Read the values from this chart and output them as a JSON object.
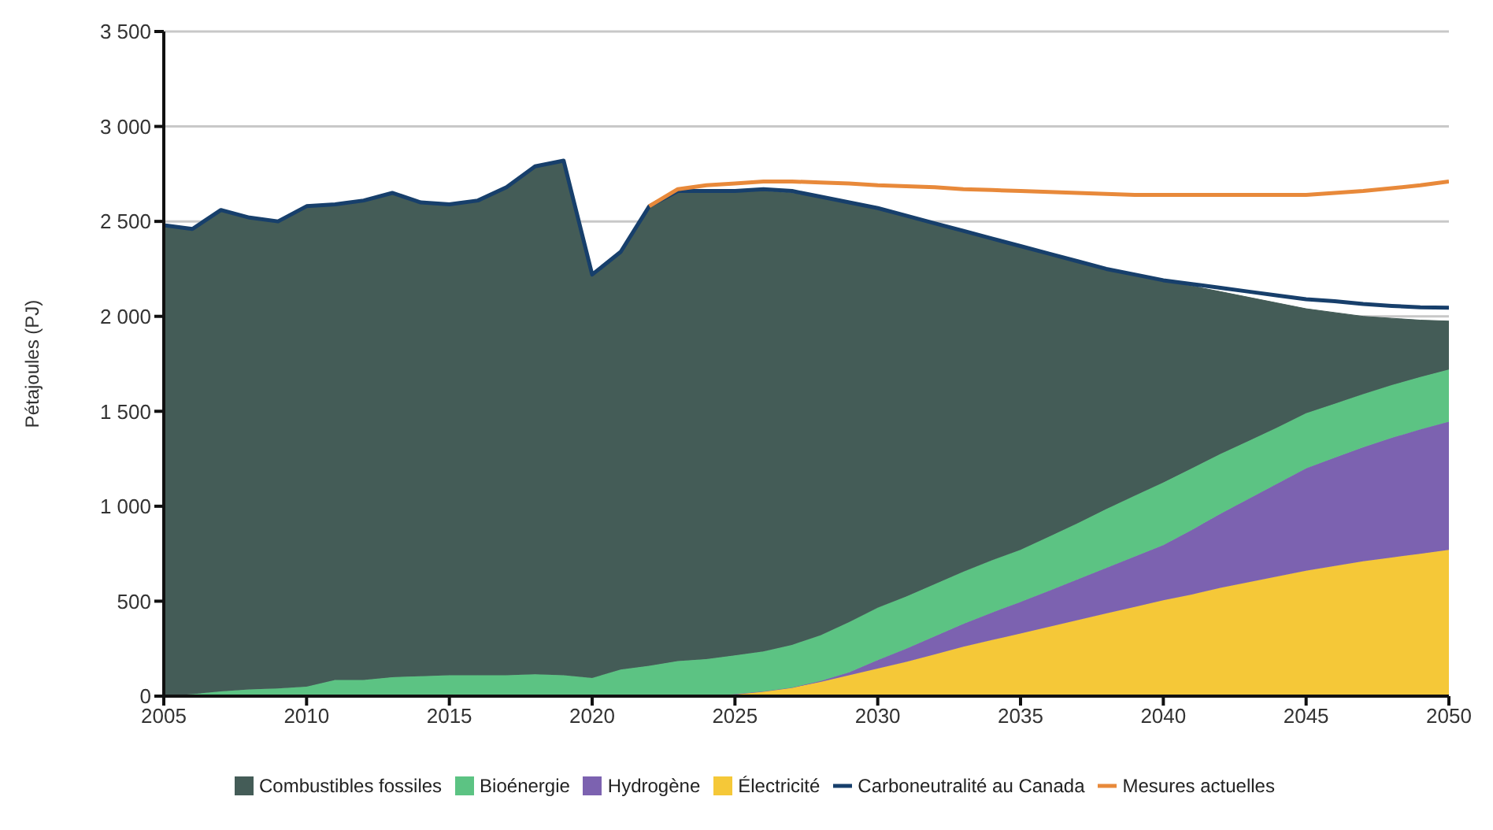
{
  "chart_data": {
    "type": "area",
    "stacked": true,
    "ylabel": "Pétajoules (PJ)",
    "x": [
      2005,
      2006,
      2007,
      2008,
      2009,
      2010,
      2011,
      2012,
      2013,
      2014,
      2015,
      2016,
      2017,
      2018,
      2019,
      2020,
      2021,
      2022,
      2023,
      2024,
      2025,
      2026,
      2027,
      2028,
      2029,
      2030,
      2031,
      2032,
      2033,
      2034,
      2035,
      2036,
      2037,
      2038,
      2039,
      2040,
      2041,
      2042,
      2043,
      2044,
      2045,
      2046,
      2047,
      2048,
      2049,
      2050
    ],
    "series": [
      {
        "name": "Électricité",
        "color": "#f5c838",
        "values": [
          0,
          0,
          0,
          0,
          0,
          0,
          0,
          0,
          0,
          0,
          0,
          0,
          0,
          0,
          0,
          0,
          0,
          0,
          0,
          0,
          10,
          25,
          45,
          75,
          110,
          145,
          180,
          220,
          260,
          295,
          330,
          365,
          400,
          435,
          470,
          505,
          535,
          570,
          600,
          630,
          660,
          685,
          710,
          730,
          750,
          770
        ]
      },
      {
        "name": "Hydrogène",
        "color": "#7c62b0",
        "values": [
          0,
          0,
          0,
          0,
          0,
          0,
          0,
          0,
          0,
          0,
          0,
          0,
          0,
          0,
          0,
          0,
          0,
          0,
          0,
          0,
          0,
          0,
          0,
          5,
          15,
          45,
          70,
          95,
          120,
          145,
          166,
          190,
          215,
          240,
          265,
          290,
          340,
          390,
          440,
          490,
          540,
          570,
          600,
          630,
          655,
          675
        ]
      },
      {
        "name": "Bioénergie",
        "color": "#5cc383",
        "values": [
          0,
          10,
          25,
          35,
          40,
          50,
          85,
          85,
          100,
          105,
          110,
          110,
          110,
          115,
          110,
          95,
          140,
          160,
          185,
          195,
          205,
          210,
          225,
          240,
          265,
          275,
          275,
          275,
          275,
          275,
          274,
          285,
          295,
          310,
          320,
          330,
          325,
          315,
          305,
          295,
          290,
          285,
          280,
          278,
          276,
          275
        ]
      },
      {
        "name": "Combustibles fossiles",
        "color": "#445c57",
        "values": [
          2480,
          2450,
          2535,
          2485,
          2460,
          2530,
          2505,
          2525,
          2550,
          2495,
          2480,
          2500,
          2570,
          2675,
          2710,
          2125,
          2200,
          2420,
          2475,
          2465,
          2445,
          2425,
          2380,
          2310,
          2210,
          2105,
          2005,
          1900,
          1795,
          1695,
          1600,
          1490,
          1380,
          1265,
          1165,
          1065,
          960,
          855,
          755,
          655,
          550,
          480,
          410,
          352,
          299,
          255
        ]
      },
      {
        "name": "Carboneutralité au Canada",
        "type": "line",
        "color": "#173f6b",
        "values": [
          2480,
          2460,
          2560,
          2520,
          2500,
          2580,
          2590,
          2610,
          2650,
          2600,
          2590,
          2610,
          2680,
          2790,
          2820,
          2220,
          2340,
          2580,
          2660,
          2660,
          2660,
          2670,
          2660,
          2630,
          2600,
          2570,
          2530,
          2490,
          2450,
          2410,
          2370,
          2330,
          2290,
          2250,
          2220,
          2190,
          2170,
          2150,
          2130,
          2110,
          2090,
          2080,
          2065,
          2055,
          2048,
          2045
        ]
      },
      {
        "name": "Mesures actuelles",
        "type": "line",
        "color": "#e8893a",
        "values": [
          null,
          null,
          null,
          null,
          null,
          null,
          null,
          null,
          null,
          null,
          null,
          null,
          null,
          null,
          null,
          null,
          null,
          2580,
          2670,
          2690,
          2700,
          2710,
          2710,
          2705,
          2700,
          2690,
          2685,
          2680,
          2670,
          2665,
          2660,
          2655,
          2650,
          2645,
          2640,
          2640,
          2640,
          2640,
          2640,
          2640,
          2640,
          2650,
          2660,
          2675,
          2690,
          2710
        ]
      }
    ],
    "xlim": [
      2005,
      2050
    ],
    "xticks": [
      2005,
      2010,
      2015,
      2020,
      2025,
      2030,
      2035,
      2040,
      2045,
      2050
    ],
    "ylim": [
      0,
      3500
    ],
    "yticks": [
      0,
      500,
      {
        "value": 1000,
        "label": "1 000"
      },
      {
        "value": 1500,
        "label": "1 500"
      },
      {
        "value": 2000,
        "label": "2 000"
      },
      {
        "value": 2500,
        "label": "2 500"
      },
      {
        "value": 3000,
        "label": "3 000"
      },
      {
        "value": 3500,
        "label": "3 500"
      }
    ],
    "grid": "y",
    "legend": "bottom",
    "marker": "none",
    "line_style": "solid"
  }
}
